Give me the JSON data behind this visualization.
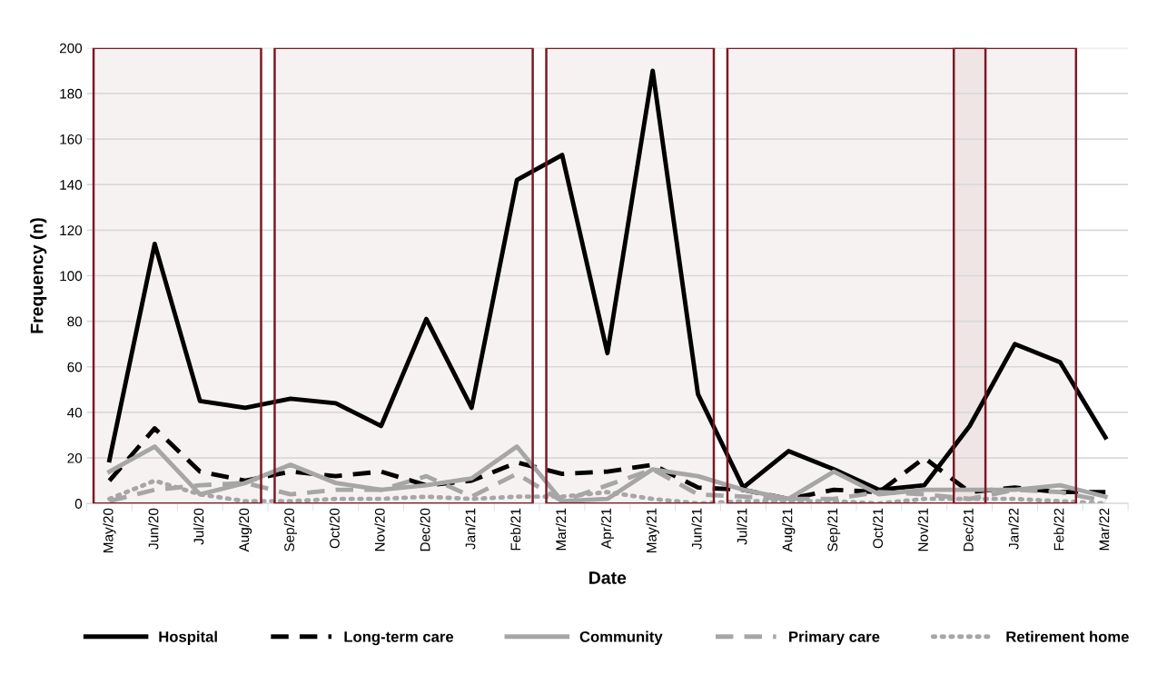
{
  "chart_data": {
    "type": "line",
    "xlabel": "Date",
    "ylabel": "Frequency (n)",
    "categories": [
      "May/20",
      "Jun/20",
      "Jul/20",
      "Aug/20",
      "Sep/20",
      "Oct/20",
      "Nov/20",
      "Dec/20",
      "Jan/21",
      "Feb/21",
      "Mar/21",
      "Apr/21",
      "May/21",
      "Jun/21",
      "Jul/21",
      "Aug/21",
      "Sep/21",
      "Oct/21",
      "Nov/21",
      "Dec/21",
      "Jan/22",
      "Feb/22",
      "Mar/22"
    ],
    "series": [
      {
        "name": "Hospital",
        "color": "#000000",
        "line_style": "solid",
        "values": [
          19,
          114,
          45,
          42,
          46,
          44,
          34,
          81,
          42,
          142,
          153,
          66,
          190,
          48,
          7,
          23,
          15,
          6,
          8,
          34,
          70,
          62,
          29
        ]
      },
      {
        "name": "Long-term care",
        "color": "#000000",
        "line_style": "dashed",
        "values": [
          10,
          33,
          14,
          10,
          14,
          12,
          14,
          8,
          10,
          18,
          13,
          14,
          17,
          7,
          6,
          2,
          6,
          5,
          20,
          5,
          7,
          5,
          5
        ]
      },
      {
        "name": "Community",
        "color": "#a6a6a6",
        "line_style": "solid",
        "values": [
          14,
          25,
          4,
          9,
          17,
          9,
          6,
          8,
          11,
          25,
          1,
          2,
          15,
          12,
          6,
          2,
          14,
          4,
          6,
          6,
          6,
          8,
          3
        ]
      },
      {
        "name": "Primary care",
        "color": "#a6a6a6",
        "line_style": "dashed",
        "values": [
          1,
          6,
          8,
          9,
          4,
          6,
          6,
          12,
          3,
          13,
          1,
          8,
          15,
          4,
          3,
          2,
          2,
          5,
          4,
          2,
          6,
          5,
          1
        ]
      },
      {
        "name": "Retirement home",
        "color": "#a6a6a6",
        "line_style": "dotted",
        "values": [
          2,
          10,
          4,
          1,
          1,
          2,
          2,
          3,
          2,
          3,
          3,
          5,
          2,
          0,
          1,
          1,
          1,
          0,
          2,
          2,
          2,
          1,
          0
        ]
      }
    ],
    "bands": [
      {
        "axis": "x",
        "from": "May/20",
        "to": "Aug/20",
        "color": "#7b1a24"
      },
      {
        "axis": "x",
        "from": "Sep/20",
        "to": "Feb/21",
        "color": "#7b1a24"
      },
      {
        "axis": "x",
        "from": "Mar/21",
        "to": "Jun/21",
        "color": "#7b1a24"
      },
      {
        "axis": "x",
        "from": "Jul/21",
        "to": "Dec/21",
        "color": "#7b1a24"
      },
      {
        "axis": "x",
        "from": "Dec/21",
        "to": "Feb/22",
        "color": "#7b1a24"
      }
    ],
    "ylim": [
      0,
      200
    ],
    "yticks": [
      0,
      20,
      40,
      60,
      80,
      100,
      120,
      140,
      160,
      180,
      200
    ],
    "grid": "y",
    "legend": "bottom",
    "marker": "none"
  }
}
